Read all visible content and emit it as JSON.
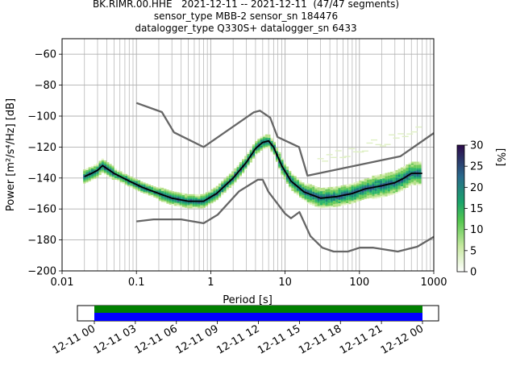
{
  "header": {
    "line1": "BK.RIMR.00.HHE   2021-12-11 -- 2021-12-11  (47/47 segments)",
    "line2": "sensor_type MBB-2 sensor_sn 184476",
    "line3": "datalogger_type Q330S+ datalogger_sn 6433"
  },
  "colors": {
    "grid": "#b0b0b0",
    "model_lines": "#666666",
    "mean_curve": "#000000",
    "coverage_top": "#008000",
    "coverage_bottom": "#0000ff"
  },
  "chart_data": [
    {
      "type": "line",
      "xlabel": "Period [s]",
      "ylabel": "Power [m²/s⁴/Hz] [dB]",
      "xscale": "log",
      "xlim": [
        0.01,
        1000
      ],
      "ylim": [
        -200,
        -50
      ],
      "x_ticks": [
        "0.01",
        "0.1",
        "1",
        "10",
        "100",
        "1000"
      ],
      "y_ticks": [
        "−200",
        "−180",
        "−160",
        "−140",
        "−120",
        "−100",
        "−80",
        "−60"
      ],
      "grid": true,
      "colorbar": {
        "label": "[%]",
        "ticks": [
          "0",
          "5",
          "10",
          "15",
          "20",
          "25",
          "30"
        ],
        "range": [
          0,
          30
        ]
      },
      "series": [
        {
          "role": "mean",
          "color": "#000000",
          "points": [
            [
              0.02,
              -139
            ],
            [
              0.025,
              -137
            ],
            [
              0.03,
              -135
            ],
            [
              0.035,
              -132
            ],
            [
              0.05,
              -137
            ],
            [
              0.08,
              -142
            ],
            [
              0.12,
              -146
            ],
            [
              0.2,
              -150
            ],
            [
              0.3,
              -153
            ],
            [
              0.5,
              -155
            ],
            [
              0.8,
              -155
            ],
            [
              1.2,
              -150
            ],
            [
              2,
              -140
            ],
            [
              3,
              -130
            ],
            [
              4,
              -121
            ],
            [
              5,
              -117
            ],
            [
              6,
              -116
            ],
            [
              7,
              -120
            ],
            [
              9,
              -132
            ],
            [
              12,
              -142
            ],
            [
              18,
              -149
            ],
            [
              30,
              -153
            ],
            [
              50,
              -152
            ],
            [
              80,
              -150
            ],
            [
              120,
              -147
            ],
            [
              200,
              -145
            ],
            [
              300,
              -143
            ],
            [
              400,
              -140
            ],
            [
              500,
              -137
            ],
            [
              700,
              -137
            ]
          ]
        },
        {
          "role": "high-noise-model",
          "color": "#666666",
          "points": [
            [
              0.1,
              -91.5
            ],
            [
              0.22,
              -97.4
            ],
            [
              0.32,
              -110.5
            ],
            [
              0.8,
              -120
            ],
            [
              3.8,
              -97.5
            ],
            [
              4.6,
              -96.5
            ],
            [
              6.3,
              -101
            ],
            [
              7.9,
              -113.5
            ],
            [
              15.4,
              -120
            ],
            [
              20,
              -138.5
            ],
            [
              354.8,
              -126
            ],
            [
              1000,
              -111
            ]
          ]
        },
        {
          "role": "low-noise-model",
          "color": "#666666",
          "points": [
            [
              0.1,
              -168
            ],
            [
              0.17,
              -166.7
            ],
            [
              0.4,
              -166.7
            ],
            [
              0.8,
              -169.2
            ],
            [
              1.24,
              -163.7
            ],
            [
              2.4,
              -148.6
            ],
            [
              4.3,
              -141.1
            ],
            [
              5,
              -141.1
            ],
            [
              6,
              -149
            ],
            [
              10,
              -163
            ],
            [
              12,
              -166
            ],
            [
              15.6,
              -162
            ],
            [
              21.9,
              -177.5
            ],
            [
              31.6,
              -185
            ],
            [
              45,
              -187.5
            ],
            [
              70,
              -187.5
            ],
            [
              101,
              -185
            ],
            [
              154,
              -185
            ],
            [
              328,
              -187.5
            ],
            [
              600,
              -184.4
            ],
            [
              1000,
              -178
            ]
          ]
        }
      ]
    },
    {
      "type": "bar",
      "role": "data-coverage",
      "x_ticks": [
        "12-11 00",
        "12-11 03",
        "12-11 06",
        "12-11 09",
        "12-11 12",
        "12-11 15",
        "12-11 18",
        "12-11 21",
        "12-12 00"
      ],
      "start": "12-11 00",
      "end": "12-12 00"
    }
  ]
}
